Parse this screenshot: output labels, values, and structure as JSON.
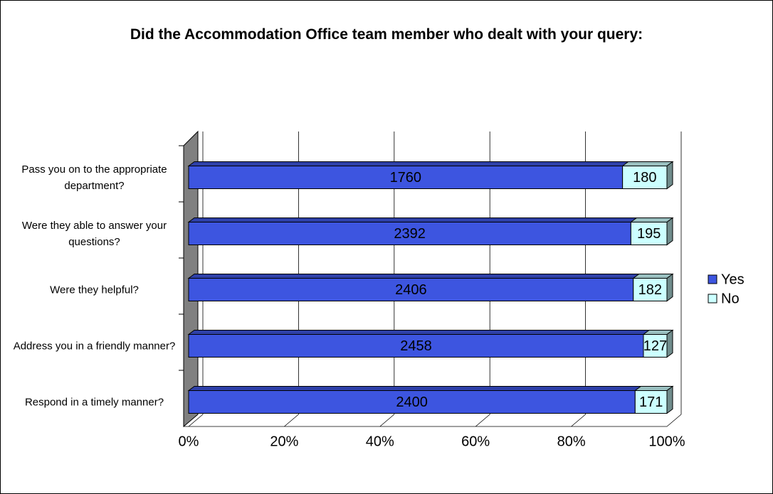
{
  "chart_data": {
    "type": "bar",
    "orientation": "horizontal",
    "stacked": "percent",
    "title": "Did the Accommodation Office team member who dealt with your query:",
    "categories": [
      "Pass you on to the appropriate department?",
      "Were they able to answer your questions?",
      "Were they helpful?",
      "Address you in a friendly manner?",
      "Respond in a timely manner?"
    ],
    "series": [
      {
        "name": "Yes",
        "color": "#3d55e0",
        "values": [
          1760,
          2392,
          2406,
          2458,
          2400
        ]
      },
      {
        "name": "No",
        "color": "#ccffff",
        "values": [
          180,
          195,
          182,
          127,
          171
        ]
      }
    ],
    "xlim": [
      0,
      100
    ],
    "xticks": [
      {
        "value": 0,
        "label": "0%"
      },
      {
        "value": 20,
        "label": "20%"
      },
      {
        "value": 40,
        "label": "40%"
      },
      {
        "value": 60,
        "label": "60%"
      },
      {
        "value": 80,
        "label": "80%"
      },
      {
        "value": 100,
        "label": "100%"
      }
    ],
    "grid": true,
    "legend": "right"
  }
}
